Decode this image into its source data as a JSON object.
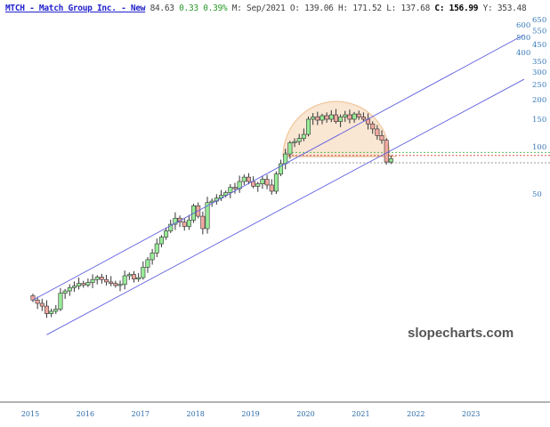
{
  "header": {
    "title": "MTCH - Match Group Inc. - New",
    "last": "84.63",
    "change": "0.33",
    "change_pct": "0.39%",
    "period": "M: Sep/2021",
    "open": "O: 139.06",
    "high": "H: 171.52",
    "low": "L: 137.68",
    "close": "C: 156.99",
    "y": "Y: 353.48"
  },
  "watermark": "slopecharts.com",
  "colors": {
    "up": "#98ec98",
    "down": "#f0a8a0",
    "trendline": "#6060e0",
    "dome": "#f7dcc0",
    "axis_text": "#3a7ab8"
  },
  "chart_data": {
    "type": "candlestick",
    "yscale": "log",
    "ylim": [
      40,
      700
    ],
    "yticks": [
      650,
      600,
      550,
      500,
      450,
      400,
      350,
      300,
      250,
      200,
      150,
      100,
      50
    ],
    "xticks": [
      "2015",
      "2016",
      "2017",
      "2018",
      "2019",
      "2020",
      "2021",
      "2022",
      "2023"
    ],
    "interval": "monthly",
    "start": "2015-01",
    "closes": [
      10.5,
      10.0,
      9.6,
      8.6,
      8.9,
      9.2,
      11.6,
      12.0,
      12.6,
      12.9,
      13.4,
      13.1,
      13.6,
      14.2,
      14.7,
      14.2,
      13.7,
      13.4,
      13.0,
      13.2,
      15.0,
      15.3,
      14.3,
      14.6,
      17,
      19,
      21,
      24,
      26.5,
      29,
      32,
      35,
      33,
      31,
      34,
      42,
      36,
      30,
      44,
      45,
      47,
      49,
      51,
      55,
      54,
      60,
      64,
      60,
      56,
      58,
      62,
      57,
      52,
      67,
      78,
      90,
      106,
      108,
      113,
      120,
      150,
      155,
      148,
      158,
      150,
      160,
      145,
      155,
      160,
      150,
      162,
      155,
      150,
      140,
      130,
      118,
      110,
      80,
      84
    ],
    "open_first": 11.2,
    "horizontal_levels": [
      {
        "value": 92,
        "color": "#5cb85c",
        "style": "dotted"
      },
      {
        "value": 88,
        "color": "#d9534f",
        "style": "dotted"
      },
      {
        "value": 79,
        "color": "#999999",
        "style": "dotted"
      }
    ],
    "trendlines": [
      {
        "from": [
          "2015-01",
          10.5
        ],
        "to": [
          "2023-12",
          520
        ]
      },
      {
        "from": [
          "2015-04",
          6.3
        ],
        "to": [
          "2023-12",
          270
        ]
      }
    ]
  }
}
